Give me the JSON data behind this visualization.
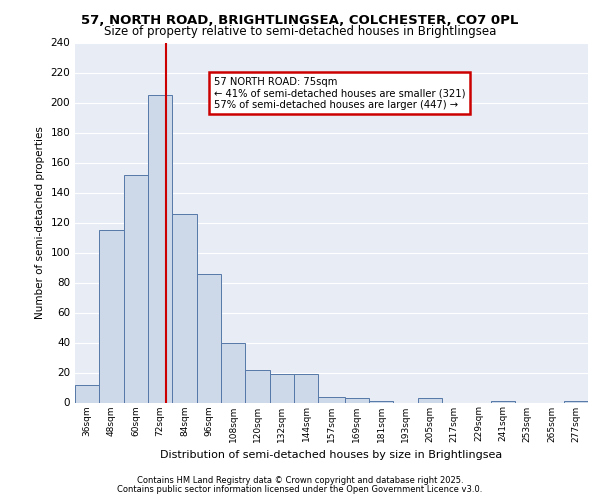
{
  "title1": "57, NORTH ROAD, BRIGHTLINGSEA, COLCHESTER, CO7 0PL",
  "title2": "Size of property relative to semi-detached houses in Brightlingsea",
  "xlabel": "Distribution of semi-detached houses by size in Brightlingsea",
  "ylabel": "Number of semi-detached properties",
  "footer1": "Contains HM Land Registry data © Crown copyright and database right 2025.",
  "footer2": "Contains public sector information licensed under the Open Government Licence v3.0.",
  "annotation_title": "57 NORTH ROAD: 75sqm",
  "annotation_line1": "← 41% of semi-detached houses are smaller (321)",
  "annotation_line2": "57% of semi-detached houses are larger (447) →",
  "property_size": 75,
  "bar_color": "#cdd8e8",
  "bar_edge_color": "#5578a8",
  "vline_color": "#cc0000",
  "bg_color": "#e8edf5",
  "annotation_box_color": "#cc0000",
  "categories": [
    "36sqm",
    "48sqm",
    "60sqm",
    "72sqm",
    "84sqm",
    "96sqm",
    "108sqm",
    "120sqm",
    "132sqm",
    "144sqm",
    "157sqm",
    "169sqm",
    "181sqm",
    "193sqm",
    "205sqm",
    "217sqm",
    "229sqm",
    "241sqm",
    "253sqm",
    "265sqm",
    "277sqm"
  ],
  "bin_edges": [
    30,
    42,
    54,
    66,
    78,
    90,
    102,
    114,
    126,
    138,
    150,
    163,
    175,
    187,
    199,
    211,
    223,
    235,
    247,
    259,
    271,
    283
  ],
  "values": [
    12,
    115,
    152,
    205,
    126,
    86,
    40,
    22,
    19,
    19,
    4,
    3,
    1,
    0,
    3,
    0,
    0,
    1,
    0,
    0,
    1
  ],
  "ylim": [
    0,
    240
  ],
  "yticks": [
    0,
    20,
    40,
    60,
    80,
    100,
    120,
    140,
    160,
    180,
    200,
    220,
    240
  ]
}
